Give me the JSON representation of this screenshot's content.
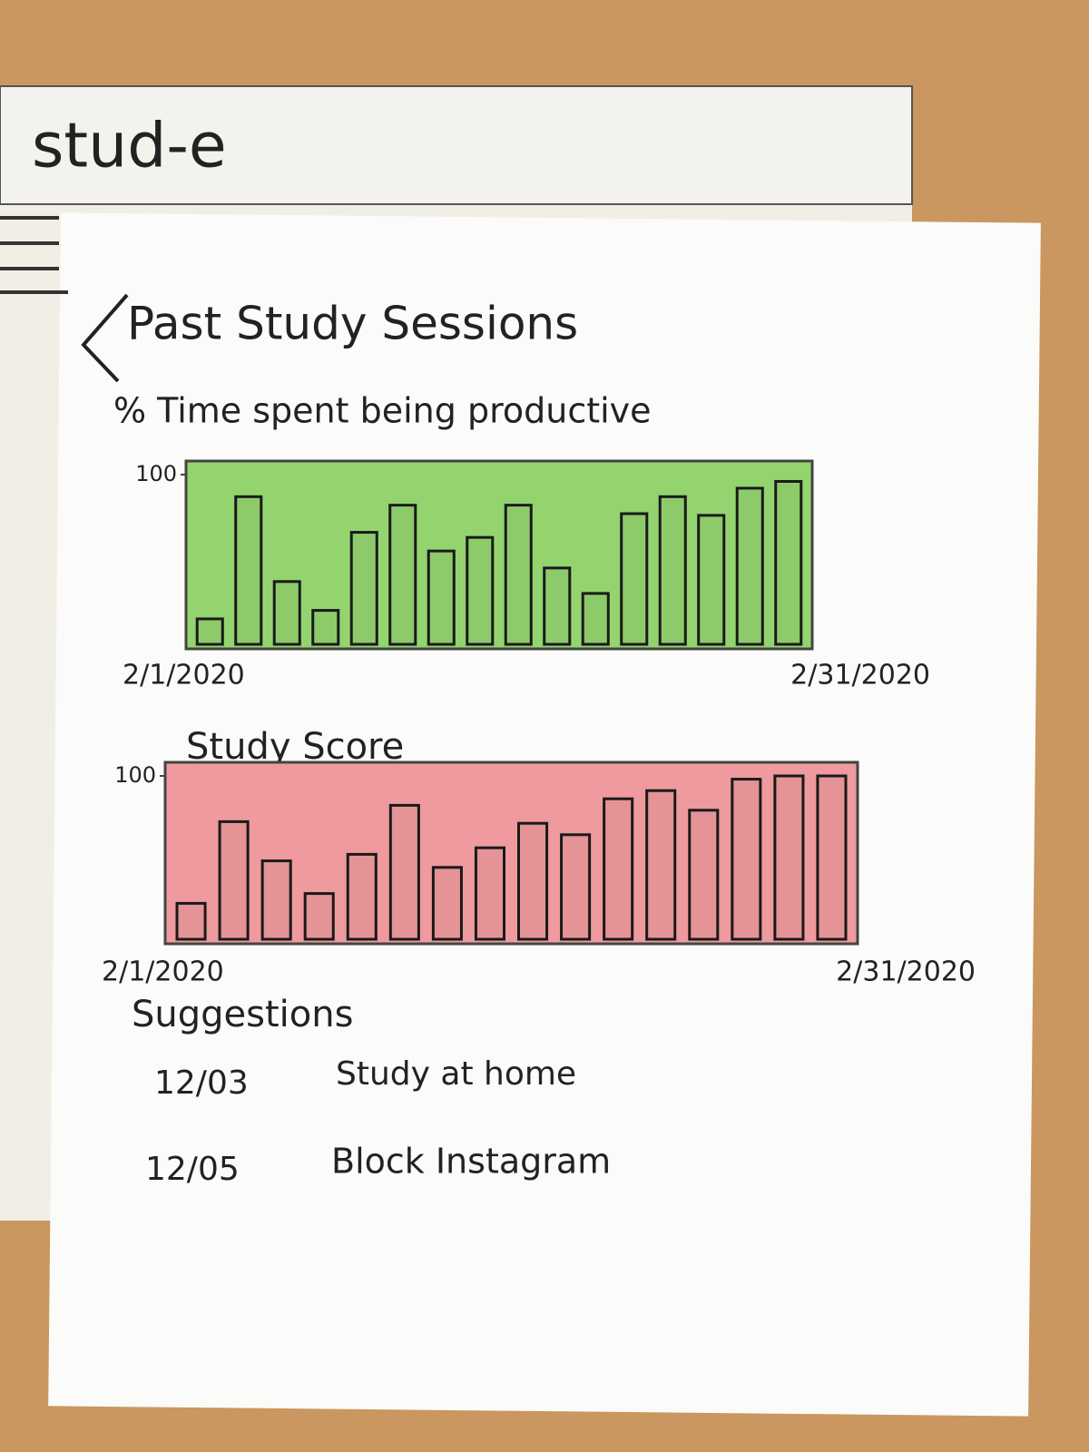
{
  "header": {
    "title": "stud-e"
  },
  "page": {
    "title": "Past Study Sessions"
  },
  "chart_data": [
    {
      "type": "bar",
      "title": "% Time spent being productive",
      "categories": [
        "2/1/2020",
        null,
        null,
        null,
        null,
        null,
        null,
        null,
        null,
        null,
        null,
        null,
        null,
        null,
        null,
        "2/31/2020"
      ],
      "values": [
        15,
        87,
        37,
        20,
        66,
        82,
        55,
        63,
        82,
        45,
        30,
        77,
        87,
        76,
        92,
        96
      ],
      "color": "#93d46f",
      "ylim": [
        0,
        100
      ],
      "yticks": [
        100
      ]
    },
    {
      "type": "bar",
      "title": "Study Score",
      "categories": [
        "2/1/2020",
        null,
        null,
        null,
        null,
        null,
        null,
        null,
        null,
        null,
        null,
        null,
        null,
        null,
        null,
        "2/31/2020"
      ],
      "values": [
        22,
        72,
        48,
        28,
        52,
        82,
        44,
        56,
        71,
        64,
        86,
        91,
        79,
        98,
        100,
        100
      ],
      "color": "#ee9a9e",
      "ylim": [
        0,
        100
      ],
      "yticks": [
        100
      ]
    }
  ],
  "suggestions": {
    "title": "Suggestions",
    "items": [
      {
        "date": "12/03",
        "text": "Study at home"
      },
      {
        "date": "12/05",
        "text": "Block Instagram"
      }
    ]
  }
}
